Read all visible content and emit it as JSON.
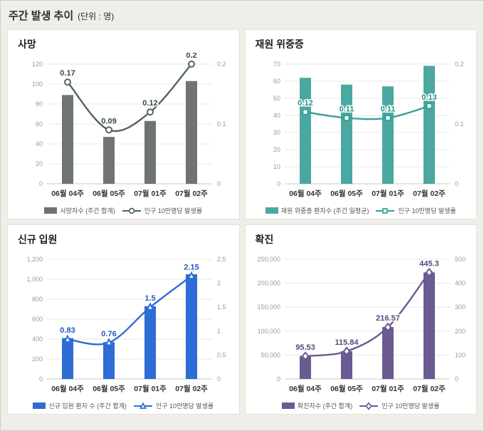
{
  "header": {
    "title": "주간 발생 추이",
    "unit": "(단위 : 명)"
  },
  "chart_data": [
    {
      "type": "bar+line",
      "title": "사망",
      "categories": [
        "06월 04주",
        "06월 05주",
        "07월 01주",
        "07월 02주"
      ],
      "bar_series": {
        "name": "사망자수 (주간 합계)",
        "values": [
          89,
          47,
          63,
          103
        ]
      },
      "line_series": {
        "name": "인구 10만명당 발생률",
        "values": [
          0.17,
          0.09,
          0.12,
          0.2
        ],
        "labels": [
          "0.17",
          "0.09",
          "0.12",
          "0.2"
        ],
        "marker": "circle"
      },
      "left_axis": {
        "min": 0,
        "max": 120,
        "step": 20
      },
      "right_axis": {
        "min": 0,
        "max": 0.2,
        "step": 0.1
      },
      "legend_position": "bottom",
      "grid": true,
      "colors": {
        "bar": "#6f7372",
        "line": "#53655e",
        "label": "#3c4a45"
      }
    },
    {
      "type": "bar+line",
      "title": "재원 위중증",
      "categories": [
        "06월 04주",
        "06월 05주",
        "07월 01주",
        "07월 02주"
      ],
      "bar_series": {
        "name": "재원 위중증 환자수 (주간 일평균)",
        "values": [
          62,
          58,
          57,
          69
        ]
      },
      "line_series": {
        "name": "인구 10만명당 발생률",
        "values": [
          0.12,
          0.11,
          0.11,
          0.13
        ],
        "labels": [
          "0.12",
          "0.11",
          "0.11",
          "0.13"
        ],
        "marker": "square"
      },
      "left_axis": {
        "min": 0,
        "max": 70,
        "step": 10
      },
      "right_axis": {
        "min": 0,
        "max": 0.2,
        "step": 0.1
      },
      "legend_position": "bottom",
      "grid": true,
      "colors": {
        "bar": "#4aa8a0",
        "line": "#35a099",
        "label": "#238f88"
      }
    },
    {
      "type": "bar+line",
      "title": "신규 입원",
      "categories": [
        "06월 04주",
        "06월 05주",
        "07월 01주",
        "07월 02주"
      ],
      "bar_series": {
        "name": "신규 입원 환자 수 (주간 합계)",
        "values": [
          410,
          370,
          730,
          1050
        ]
      },
      "line_series": {
        "name": "인구 10만명당 발생률",
        "values": [
          0.83,
          0.76,
          1.5,
          2.15
        ],
        "labels": [
          "0.83",
          "0.76",
          "1.5",
          "2.15"
        ],
        "marker": "triangle"
      },
      "left_axis": {
        "min": 0,
        "max": 1200,
        "step": 200
      },
      "right_axis": {
        "min": 0,
        "max": 2.5,
        "step": 0.5
      },
      "legend_position": "bottom",
      "grid": true,
      "colors": {
        "bar": "#2e6cd6",
        "line": "#2e6cd6",
        "label": "#2458c2"
      }
    },
    {
      "type": "bar+line",
      "title": "확진",
      "categories": [
        "06월 04주",
        "06월 05주",
        "07월 01주",
        "07월 02주"
      ],
      "bar_series": {
        "name": "확진자수 (주간 합계)",
        "values": [
          48000,
          58000,
          108500,
          222500
        ]
      },
      "line_series": {
        "name": "인구 10만명당 발생률",
        "values": [
          95.53,
          115.84,
          216.57,
          445.3
        ],
        "labels": [
          "95.53",
          "115.84",
          "216.57",
          "445.3"
        ],
        "marker": "diamond"
      },
      "left_axis": {
        "min": 0,
        "max": 250000,
        "step": 50000
      },
      "right_axis": {
        "min": 0,
        "max": 500,
        "step": 100
      },
      "legend_position": "bottom",
      "grid": true,
      "colors": {
        "bar": "#6a5b92",
        "line": "#6a5b92",
        "label": "#57487e"
      }
    }
  ]
}
